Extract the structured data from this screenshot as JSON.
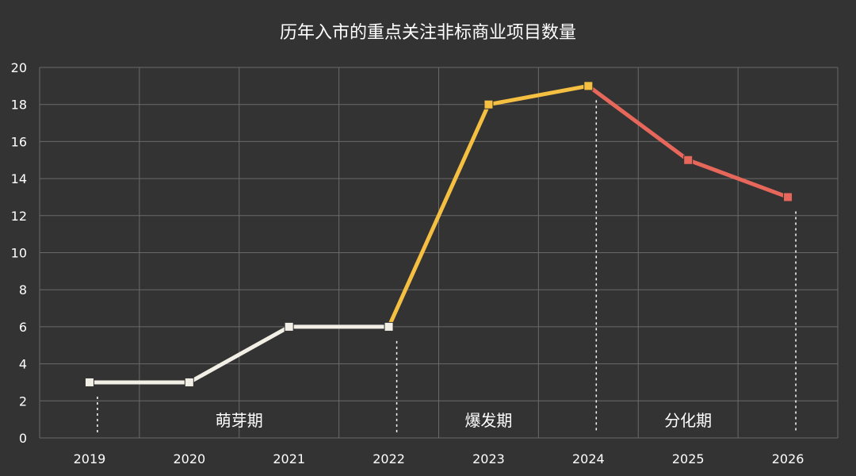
{
  "chart_data": {
    "type": "line",
    "title": "历年入市的重点关注非标商业项目数量",
    "xlabel": "",
    "ylabel": "",
    "ylim": [
      0,
      20
    ],
    "y_ticks": [
      0,
      2,
      4,
      6,
      8,
      10,
      12,
      14,
      16,
      18,
      20
    ],
    "x": [
      "2019",
      "2020",
      "2021",
      "2022",
      "2023",
      "2024",
      "2025",
      "2026"
    ],
    "values": [
      3,
      3,
      6,
      6,
      18,
      19,
      15,
      13
    ],
    "grid": true,
    "segments": [
      {
        "from": 0,
        "to": 3,
        "color": "#f2efe6"
      },
      {
        "from": 3,
        "to": 5,
        "color": "#f5bf42"
      },
      {
        "from": 5,
        "to": 7,
        "color": "#e8675b"
      }
    ],
    "phase_labels": [
      {
        "text": "萌芽期",
        "x_center": 1.5
      },
      {
        "text": "爆发期",
        "x_center": 4.0
      },
      {
        "text": "分化期",
        "x_center": 6.0
      }
    ],
    "phase_dividers": [
      0,
      3,
      5,
      7
    ]
  },
  "colors": {
    "background": "#333333",
    "grid": "#6a6a6a",
    "text": "#ffffff",
    "divider": "#ffffff"
  }
}
